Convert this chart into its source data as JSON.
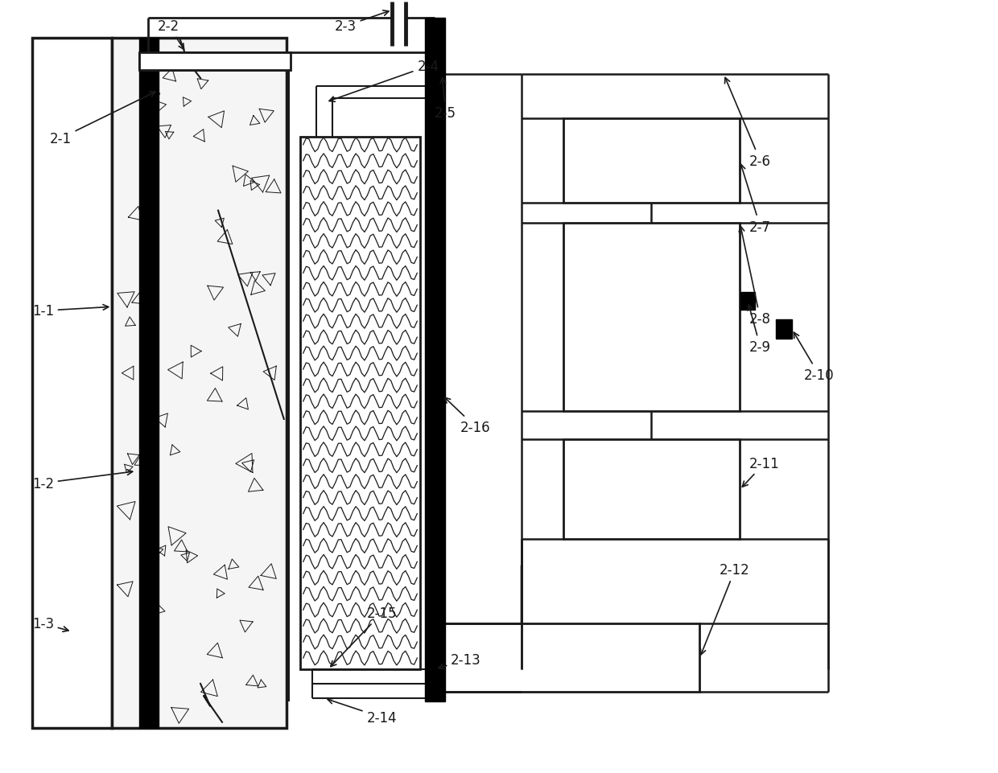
{
  "fig_width": 12.4,
  "fig_height": 9.62,
  "bg_color": "#ffffff",
  "lc": "#1a1a1a",
  "label_fs": 12
}
